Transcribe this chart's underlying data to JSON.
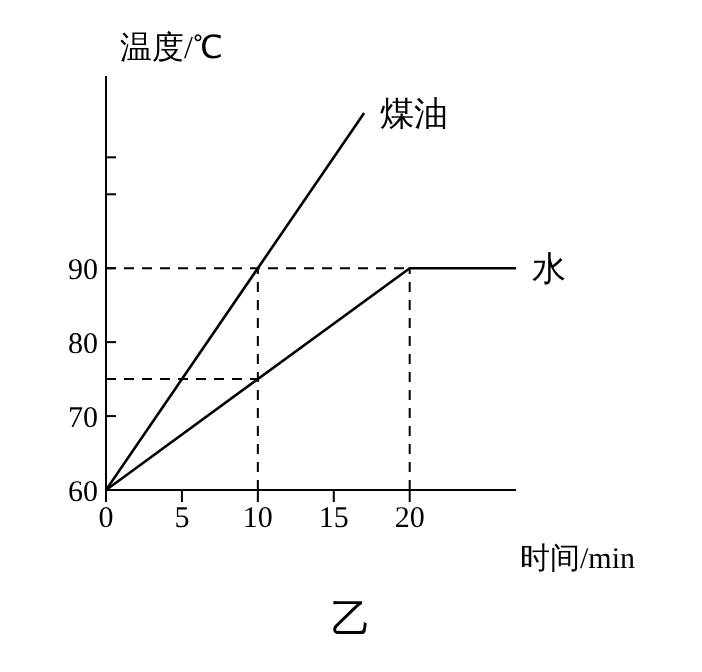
{
  "chart_data": {
    "type": "line",
    "xlabel": "时间/min",
    "ylabel": "温度/℃",
    "series": [
      {
        "name": "煤油",
        "color": "#000000",
        "x": [
          0,
          10,
          17
        ],
        "values": [
          60,
          90,
          111
        ]
      },
      {
        "name": "水",
        "color": "#000000",
        "x": [
          0,
          20,
          27
        ],
        "values": [
          60,
          90,
          90
        ]
      }
    ],
    "xlim": [
      0,
      27
    ],
    "xticks": [
      0,
      5,
      10,
      15,
      20
    ],
    "ylim": [
      60,
      116
    ],
    "yticks": [
      60,
      70,
      80,
      90,
      {
        "value": 100,
        "label": null
      },
      {
        "value": 105,
        "label": null
      }
    ],
    "ref_lines": [
      {
        "axis": "y",
        "value": 90,
        "line_style": "dashed",
        "color": "#000000"
      },
      {
        "axis": "y",
        "value": 75,
        "line_style": "dashed",
        "color": "#000000"
      },
      {
        "axis": "x",
        "value": 10,
        "line_style": "dashed",
        "color": "#000000"
      },
      {
        "axis": "x",
        "value": 20,
        "line_style": "dashed",
        "color": "#000000"
      }
    ],
    "annotations": [
      "乙"
    ],
    "grid": false,
    "legend": false,
    "marker": "none",
    "line_style": "solid"
  }
}
